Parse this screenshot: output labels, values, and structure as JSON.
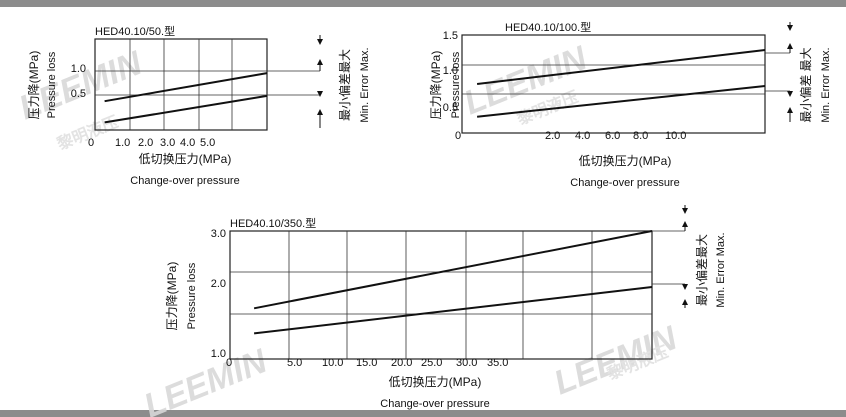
{
  "chart_data": [
    {
      "type": "line",
      "title": "HED40.10/50.型",
      "ylabel_cn": "压力降(MPa)",
      "ylabel_en": "Pressure loss",
      "xlabel_cn": "低切换压力(MPa)",
      "xlabel_en": "Change-over pressure",
      "x_ticks": [
        "0",
        "1.0",
        "2.0",
        "3.0",
        "4.0",
        "5.0"
      ],
      "y_ticks": [
        "0.5",
        "1.0"
      ],
      "xlim": [
        0,
        9
      ],
      "ylim": [
        0,
        1.2
      ],
      "side_label_cn": "最小偏差最大",
      "side_label_en": "Min. Error Max.",
      "series": [
        {
          "x": [
            0.5,
            9
          ],
          "values": [
            0.38,
            0.75
          ]
        },
        {
          "x": [
            0.5,
            9
          ],
          "values": [
            0.1,
            0.45
          ]
        }
      ]
    },
    {
      "type": "line",
      "title": "HED40.10/100.型",
      "ylabel_cn": "压力降(MPa)",
      "ylabel_en": "Pressure loss",
      "xlabel_cn": "低切换压力(MPa)",
      "xlabel_en": "Change-over pressure",
      "x_ticks": [
        "0",
        "2.0",
        "4.0",
        "6.0",
        "8.0",
        "10.0"
      ],
      "y_ticks": [
        "0.5",
        "1.0",
        "1.5"
      ],
      "xlim": [
        0,
        20
      ],
      "ylim": [
        0,
        1.5
      ],
      "side_label_cn": "最小偏差 最大",
      "side_label_en": "Min. Error Max.",
      "series": [
        {
          "x": [
            1,
            20
          ],
          "values": [
            0.75,
            1.27
          ]
        },
        {
          "x": [
            1,
            20
          ],
          "values": [
            0.25,
            0.72
          ]
        }
      ]
    },
    {
      "type": "line",
      "title": "HED40.10/350.型",
      "ylabel_cn": "压力降(MPa)",
      "ylabel_en": "Pressure loss",
      "xlabel_cn": "低切换压力(MPa)",
      "xlabel_en": "Change-over pressure",
      "x_ticks": [
        "0",
        "5.0",
        "10.0",
        "15.0",
        "20.0",
        "25.0",
        "30.0",
        "35.0"
      ],
      "y_ticks": [
        "1.0",
        "2.0",
        "3.0"
      ],
      "xlim": [
        0,
        70
      ],
      "ylim": [
        0.6,
        3.0
      ],
      "side_label_cn": "最小偏差最大",
      "side_label_en": "Min. Error Max.",
      "series": [
        {
          "x": [
            4,
            70
          ],
          "values": [
            1.55,
            3.0
          ]
        },
        {
          "x": [
            4,
            70
          ],
          "values": [
            1.08,
            1.95
          ]
        }
      ]
    }
  ],
  "watermark": {
    "brand": "LEEMIN",
    "cn": "黎明液压",
    "color": "#d9d9d9"
  }
}
